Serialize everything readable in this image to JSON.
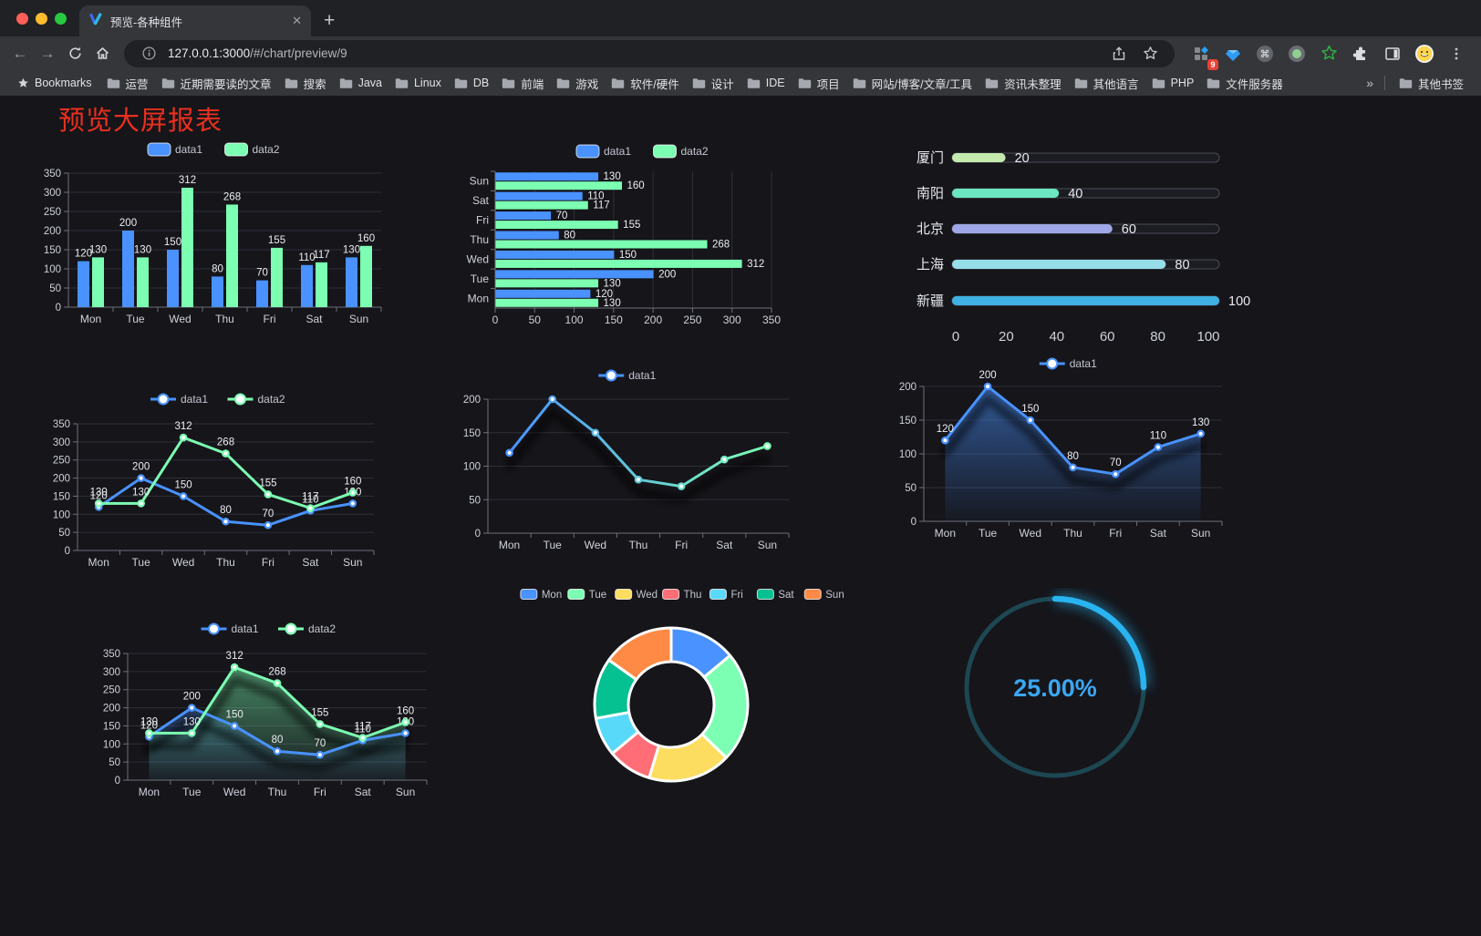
{
  "browser": {
    "tab_title": "预览-各种组件",
    "url": {
      "host": "127.0.0.1:3000",
      "path": "/#/chart/preview/9"
    },
    "extension_badge": "9",
    "bookmarks_label": "Bookmarks",
    "bookmarks": [
      "运营",
      "近期需要读的文章",
      "搜索",
      "Java",
      "Linux",
      "DB",
      "前端",
      "游戏",
      "软件/硬件",
      "设计",
      "IDE",
      "项目",
      "网站/博客/文章/工具",
      "资讯未整理",
      "其他语言",
      "PHP",
      "文件服务器"
    ],
    "overflow_chevron": "»",
    "other_bookmarks": "其他书签"
  },
  "page": {
    "title": "预览大屏报表",
    "title_color": "#e9301e"
  },
  "chart_data": [
    {
      "id": "bar_vertical",
      "type": "bar",
      "categories": [
        "Mon",
        "Tue",
        "Wed",
        "Thu",
        "Fri",
        "Sat",
        "Sun"
      ],
      "series": [
        {
          "name": "data1",
          "color": "#4992ff",
          "values": [
            120,
            200,
            150,
            80,
            70,
            110,
            130
          ]
        },
        {
          "name": "data2",
          "color": "#7cffb2",
          "values": [
            130,
            130,
            312,
            268,
            155,
            117,
            160
          ]
        }
      ],
      "ylim": [
        0,
        350
      ],
      "ystep": 50,
      "legend_position": "top"
    },
    {
      "id": "bar_horizontal",
      "type": "bar",
      "orientation": "horizontal",
      "categories": [
        "Mon",
        "Tue",
        "Wed",
        "Thu",
        "Fri",
        "Sat",
        "Sun"
      ],
      "series": [
        {
          "name": "data1",
          "color": "#4992ff",
          "values": [
            120,
            200,
            150,
            80,
            70,
            110,
            130
          ]
        },
        {
          "name": "data2",
          "color": "#7cffb2",
          "values": [
            130,
            130,
            312,
            268,
            155,
            117,
            160
          ]
        }
      ],
      "xlim": [
        0,
        350
      ],
      "xstep": 50,
      "legend_position": "top"
    },
    {
      "id": "progress_bars",
      "type": "bar",
      "orientation": "horizontal-progress",
      "rows": [
        {
          "label": "厦门",
          "value": 20,
          "color": "#c4ebad"
        },
        {
          "label": "南阳",
          "value": 40,
          "color": "#6be6c1"
        },
        {
          "label": "北京",
          "value": 60,
          "color": "#a0a7e6"
        },
        {
          "label": "上海",
          "value": 80,
          "color": "#96dee8"
        },
        {
          "label": "新疆",
          "value": 100,
          "color": "#3fb1e3"
        }
      ],
      "xlim": [
        0,
        100
      ],
      "xticks": [
        0,
        20,
        40,
        60,
        80,
        100
      ]
    },
    {
      "id": "line_two",
      "type": "line",
      "categories": [
        "Mon",
        "Tue",
        "Wed",
        "Thu",
        "Fri",
        "Sat",
        "Sun"
      ],
      "series": [
        {
          "name": "data1",
          "color": "#4992ff",
          "values": [
            120,
            200,
            150,
            80,
            70,
            110,
            130
          ]
        },
        {
          "name": "data2",
          "color": "#7cffb2",
          "values": [
            130,
            130,
            312,
            268,
            155,
            117,
            160
          ]
        }
      ],
      "ylim": [
        0,
        350
      ],
      "ystep": 50,
      "labels": true
    },
    {
      "id": "line_gradient",
      "type": "line",
      "categories": [
        "Mon",
        "Tue",
        "Wed",
        "Thu",
        "Fri",
        "Sat",
        "Sun"
      ],
      "series": [
        {
          "name": "data1",
          "gradient": [
            "#4992ff",
            "#7cffb2"
          ],
          "values": [
            120,
            200,
            150,
            80,
            70,
            110,
            130
          ]
        }
      ],
      "ylim": [
        0,
        200
      ],
      "ystep": 50,
      "labels": false,
      "shadow": true
    },
    {
      "id": "area_blue",
      "type": "area",
      "categories": [
        "Mon",
        "Tue",
        "Wed",
        "Thu",
        "Fri",
        "Sat",
        "Sun"
      ],
      "series": [
        {
          "name": "data1",
          "color": "#4992ff",
          "area": true,
          "values": [
            120,
            200,
            150,
            80,
            70,
            110,
            130
          ]
        }
      ],
      "ylim": [
        0,
        200
      ],
      "ystep": 50,
      "labels": true,
      "shadow": true
    },
    {
      "id": "area_two",
      "type": "area",
      "categories": [
        "Mon",
        "Tue",
        "Wed",
        "Thu",
        "Fri",
        "Sat",
        "Sun"
      ],
      "series": [
        {
          "name": "data1",
          "color": "#4992ff",
          "area": true,
          "values": [
            120,
            200,
            150,
            80,
            70,
            110,
            130
          ]
        },
        {
          "name": "data2",
          "color": "#7cffb2",
          "area": true,
          "values": [
            130,
            130,
            312,
            268,
            155,
            117,
            160
          ]
        }
      ],
      "ylim": [
        0,
        350
      ],
      "ystep": 50,
      "labels": true,
      "shadow": true
    },
    {
      "id": "donut",
      "type": "pie",
      "items": [
        {
          "label": "Mon",
          "value": 120,
          "color": "#4992ff"
        },
        {
          "label": "Tue",
          "value": 200,
          "color": "#7cffb2"
        },
        {
          "label": "Wed",
          "value": 150,
          "color": "#fddd60"
        },
        {
          "label": "Thu",
          "value": 80,
          "color": "#ff6e76"
        },
        {
          "label": "Fri",
          "value": 70,
          "color": "#58d9f9"
        },
        {
          "label": "Sat",
          "value": 110,
          "color": "#05c091"
        },
        {
          "label": "Sun",
          "value": 130,
          "color": "#ff8a45"
        }
      ],
      "legend_position": "top"
    },
    {
      "id": "gauge",
      "type": "gauge",
      "value_label": "25.00%",
      "percent": 25,
      "color": "#28b4f0",
      "track_color": "#1d4752",
      "text_color": "#3ba7f2"
    }
  ]
}
